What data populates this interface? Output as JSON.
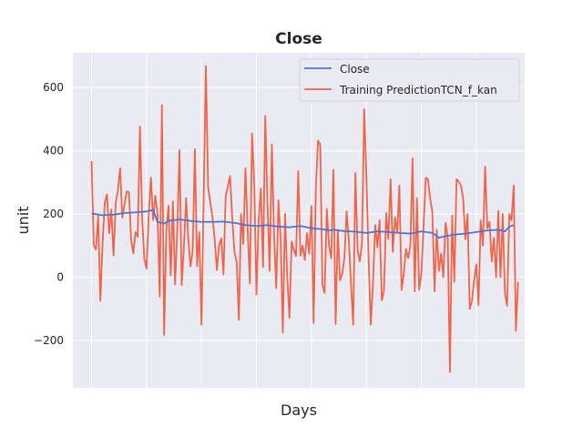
{
  "chart_data": {
    "type": "line",
    "title": "Close",
    "xlabel": "Days",
    "ylabel": "unit",
    "xlim": [
      -8.5,
      197
    ],
    "ylim": [
      -350,
      710
    ],
    "yticks": [
      -200,
      0,
      200,
      400,
      600
    ],
    "xgrid": [
      0,
      25,
      50,
      75,
      100,
      125,
      150,
      175
    ],
    "grid": true,
    "legend_position": "top-right",
    "colors": {
      "background": "#eaeaf2",
      "grid": "#ffffff",
      "close": "#4c72d8",
      "prediction": "#f0644a"
    },
    "series": [
      {
        "name": "Close",
        "anchors": [
          [
            0,
            202
          ],
          [
            5,
            196
          ],
          [
            10,
            198
          ],
          [
            15,
            203
          ],
          [
            20,
            205
          ],
          [
            25,
            208
          ],
          [
            28,
            213
          ],
          [
            30,
            175
          ],
          [
            33,
            170
          ],
          [
            35,
            178
          ],
          [
            40,
            183
          ],
          [
            45,
            178
          ],
          [
            50,
            175
          ],
          [
            55,
            175
          ],
          [
            60,
            176
          ],
          [
            65,
            172
          ],
          [
            70,
            165
          ],
          [
            75,
            162
          ],
          [
            80,
            165
          ],
          [
            85,
            160
          ],
          [
            90,
            158
          ],
          [
            95,
            162
          ],
          [
            100,
            155
          ],
          [
            105,
            152
          ],
          [
            108,
            148
          ],
          [
            110,
            150
          ],
          [
            115,
            146
          ],
          [
            120,
            144
          ],
          [
            125,
            140
          ],
          [
            130,
            145
          ],
          [
            135,
            143
          ],
          [
            140,
            140
          ],
          [
            145,
            138
          ],
          [
            150,
            145
          ],
          [
            155,
            140
          ],
          [
            158,
            125
          ],
          [
            160,
            128
          ],
          [
            165,
            135
          ],
          [
            170,
            138
          ],
          [
            175,
            143
          ],
          [
            180,
            148
          ],
          [
            185,
            150
          ],
          [
            188,
            145
          ],
          [
            190,
            160
          ],
          [
            192,
            165
          ]
        ]
      },
      {
        "name": "Training PredictionTCN_f_kan",
        "values": [
          367,
          101,
          88,
          195,
          -75,
          105,
          235,
          262,
          139,
          215,
          69,
          236,
          276,
          345,
          188,
          230,
          272,
          269,
          117,
          75,
          143,
          128,
          477,
          188,
          58,
          27,
          195,
          315,
          181,
          258,
          200,
          -62,
          545,
          -183,
          149,
          226,
          5,
          240,
          -23,
          155,
          402,
          -25,
          95,
          250,
          122,
          34,
          83,
          405,
          35,
          143,
          -150,
          256,
          668,
          285,
          238,
          188,
          120,
          23,
          100,
          123,
          9,
          257,
          288,
          320,
          185,
          80,
          48,
          -135,
          200,
          105,
          345,
          148,
          -20,
          455,
          296,
          -55,
          180,
          280,
          32,
          510,
          235,
          20,
          420,
          134,
          -35,
          243,
          120,
          -175,
          200,
          -1,
          -128,
          113,
          87,
          67,
          336,
          68,
          100,
          55,
          140,
          75,
          225,
          -145,
          280,
          432,
          420,
          -25,
          -50,
          216,
          100,
          60,
          340,
          -148,
          150,
          -10,
          10,
          60,
          209,
          118,
          -20,
          -150,
          330,
          85,
          50,
          110,
          531,
          320,
          60,
          -150,
          -20,
          165,
          95,
          180,
          -73,
          -43,
          203,
          120,
          310,
          80,
          190,
          140,
          290,
          -40,
          10,
          90,
          60,
          100,
          376,
          -45,
          250,
          -40,
          12,
          160,
          315,
          310,
          250,
          205,
          -45,
          150,
          20,
          75,
          0,
          172,
          125,
          -300,
          195,
          -15,
          310,
          302,
          290,
          250,
          120,
          200,
          -100,
          -75,
          -10,
          40,
          -88,
          180,
          100,
          350,
          155,
          175,
          50,
          125,
          0,
          210,
          0,
          200,
          -50,
          -90,
          200,
          180,
          290,
          -170,
          -15
        ]
      }
    ]
  }
}
